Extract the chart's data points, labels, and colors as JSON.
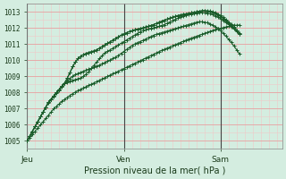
{
  "title": "Pression niveau de la mer( hPa )",
  "ylim": [
    1004.5,
    1013.5
  ],
  "yticks": [
    1005,
    1006,
    1007,
    1008,
    1009,
    1010,
    1011,
    1012,
    1013
  ],
  "day_labels": [
    "Jeu",
    "Ven",
    "Sam"
  ],
  "day_positions": [
    0,
    36,
    72
  ],
  "total_points": 96,
  "bg_color": "#d4ede0",
  "grid_color_major": "#e8a0a0",
  "grid_color_minor": "#f0c8c8",
  "line_color": "#1a5c2a",
  "lines": [
    [
      1005.0,
      1005.3,
      1005.6,
      1005.9,
      1006.2,
      1006.5,
      1006.8,
      1007.1,
      1007.4,
      1007.6,
      1007.8,
      1008.0,
      1008.2,
      1008.4,
      1008.55,
      1008.65,
      1008.7,
      1008.75,
      1008.8,
      1008.85,
      1008.9,
      1009.0,
      1009.15,
      1009.3,
      1009.5,
      1009.7,
      1009.9,
      1010.1,
      1010.3,
      1010.45,
      1010.55,
      1010.65,
      1010.75,
      1010.85,
      1010.95,
      1011.05,
      1011.15,
      1011.25,
      1011.35,
      1011.45,
      1011.55,
      1011.65,
      1011.75,
      1011.82,
      1011.88,
      1011.93,
      1011.97,
      1012.0,
      1012.05,
      1012.1,
      1012.15,
      1012.2,
      1012.28,
      1012.36,
      1012.44,
      1012.52,
      1012.6,
      1012.67,
      1012.73,
      1012.78,
      1012.83,
      1012.87,
      1012.9,
      1012.92,
      1012.94,
      1012.95,
      1012.94,
      1012.92,
      1012.88,
      1012.83,
      1012.76,
      1012.68,
      1012.58,
      1012.47,
      1012.35,
      1012.22,
      1012.08,
      1011.93,
      1011.77,
      1011.6
    ],
    [
      1005.0,
      1005.3,
      1005.6,
      1005.9,
      1006.2,
      1006.5,
      1006.8,
      1007.1,
      1007.4,
      1007.6,
      1007.8,
      1008.0,
      1008.2,
      1008.4,
      1008.6,
      1008.9,
      1009.25,
      1009.6,
      1009.9,
      1010.1,
      1010.25,
      1010.35,
      1010.42,
      1010.48,
      1010.53,
      1010.58,
      1010.65,
      1010.75,
      1010.85,
      1010.95,
      1011.05,
      1011.15,
      1011.25,
      1011.35,
      1011.45,
      1011.55,
      1011.63,
      1011.7,
      1011.77,
      1011.83,
      1011.88,
      1011.92,
      1011.96,
      1012.0,
      1012.05,
      1012.1,
      1012.15,
      1012.2,
      1012.27,
      1012.34,
      1012.41,
      1012.48,
      1012.54,
      1012.6,
      1012.66,
      1012.71,
      1012.76,
      1012.8,
      1012.84,
      1012.87,
      1012.9,
      1012.93,
      1012.96,
      1013.0,
      1013.03,
      1013.05,
      1013.05,
      1013.03,
      1013.0,
      1012.95,
      1012.88,
      1012.8,
      1012.7,
      1012.58,
      1012.45,
      1012.31,
      1012.16,
      1012.0,
      1011.83,
      1011.65
    ],
    [
      1005.0,
      1005.3,
      1005.6,
      1005.9,
      1006.2,
      1006.5,
      1006.8,
      1007.1,
      1007.4,
      1007.6,
      1007.8,
      1008.0,
      1008.2,
      1008.4,
      1008.6,
      1008.9,
      1009.25,
      1009.6,
      1009.9,
      1010.1,
      1010.25,
      1010.35,
      1010.42,
      1010.48,
      1010.53,
      1010.58,
      1010.65,
      1010.75,
      1010.85,
      1010.95,
      1011.05,
      1011.15,
      1011.25,
      1011.35,
      1011.45,
      1011.55,
      1011.63,
      1011.7,
      1011.77,
      1011.83,
      1011.88,
      1011.92,
      1011.96,
      1012.0,
      1012.05,
      1012.1,
      1012.15,
      1012.2,
      1012.27,
      1012.34,
      1012.41,
      1012.48,
      1012.54,
      1012.6,
      1012.66,
      1012.71,
      1012.76,
      1012.8,
      1012.84,
      1012.87,
      1012.9,
      1012.93,
      1012.96,
      1013.0,
      1013.03,
      1013.07,
      1013.08,
      1013.07,
      1013.05,
      1013.01,
      1012.95,
      1012.87,
      1012.77,
      1012.65,
      1012.52,
      1012.37,
      1012.21,
      1012.04,
      1011.86,
      1011.67
    ],
    [
      1005.0,
      1005.3,
      1005.6,
      1005.9,
      1006.2,
      1006.5,
      1006.8,
      1007.1,
      1007.35,
      1007.55,
      1007.75,
      1007.95,
      1008.15,
      1008.35,
      1008.55,
      1008.72,
      1008.87,
      1009.0,
      1009.1,
      1009.18,
      1009.25,
      1009.32,
      1009.38,
      1009.44,
      1009.5,
      1009.56,
      1009.63,
      1009.7,
      1009.78,
      1009.86,
      1009.94,
      1010.02,
      1010.1,
      1010.2,
      1010.3,
      1010.42,
      1010.54,
      1010.66,
      1010.78,
      1010.9,
      1011.0,
      1011.08,
      1011.15,
      1011.22,
      1011.3,
      1011.38,
      1011.46,
      1011.54,
      1011.6,
      1011.65,
      1011.7,
      1011.75,
      1011.8,
      1011.85,
      1011.9,
      1011.95,
      1012.0,
      1012.05,
      1012.1,
      1012.15,
      1012.2,
      1012.25,
      1012.3,
      1012.35,
      1012.38,
      1012.38,
      1012.36,
      1012.32,
      1012.26,
      1012.18,
      1012.08,
      1011.96,
      1011.82,
      1011.66,
      1011.49,
      1011.3,
      1011.1,
      1010.88,
      1010.65,
      1010.4
    ],
    [
      1005.0,
      1005.2,
      1005.4,
      1005.6,
      1005.8,
      1006.0,
      1006.2,
      1006.4,
      1006.6,
      1006.8,
      1007.0,
      1007.15,
      1007.3,
      1007.45,
      1007.58,
      1007.7,
      1007.82,
      1007.93,
      1008.03,
      1008.12,
      1008.2,
      1008.28,
      1008.36,
      1008.44,
      1008.52,
      1008.6,
      1008.68,
      1008.76,
      1008.84,
      1008.92,
      1009.0,
      1009.08,
      1009.16,
      1009.24,
      1009.32,
      1009.4,
      1009.48,
      1009.56,
      1009.64,
      1009.72,
      1009.8,
      1009.88,
      1009.96,
      1010.04,
      1010.12,
      1010.2,
      1010.28,
      1010.36,
      1010.44,
      1010.52,
      1010.6,
      1010.67,
      1010.74,
      1010.81,
      1010.88,
      1010.95,
      1011.02,
      1011.09,
      1011.16,
      1011.23,
      1011.3,
      1011.36,
      1011.42,
      1011.48,
      1011.54,
      1011.6,
      1011.66,
      1011.72,
      1011.78,
      1011.84,
      1011.9,
      1011.94,
      1011.98,
      1012.02,
      1012.06,
      1012.1,
      1012.14,
      1012.16,
      1012.17,
      1012.18
    ]
  ]
}
